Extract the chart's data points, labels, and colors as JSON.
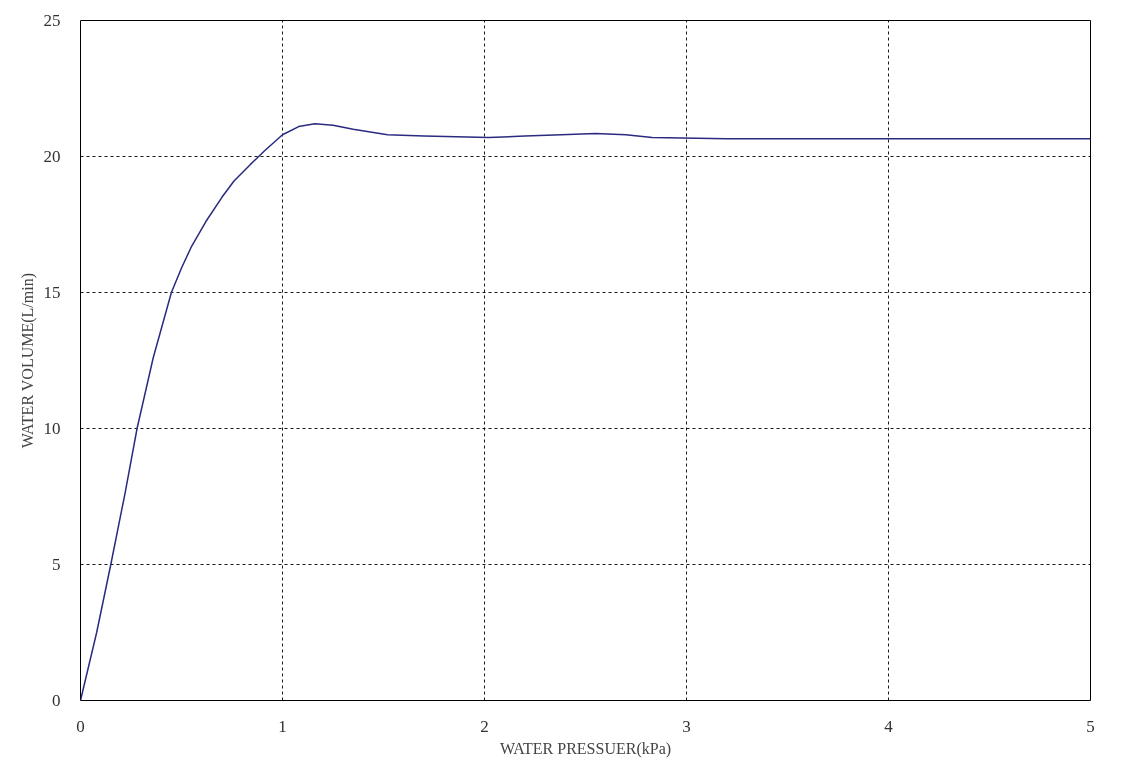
{
  "chart_data": {
    "type": "line",
    "xlabel": "WATER PRESSUER(kPa)",
    "ylabel": "WATER VOLUME(L/min)",
    "xlim": [
      0,
      5
    ],
    "ylim": [
      0,
      25
    ],
    "xticks": [
      0,
      1,
      2,
      3,
      4,
      5
    ],
    "yticks": [
      0,
      5,
      10,
      15,
      20,
      25
    ],
    "grid": true,
    "line_style": "solid",
    "marker": "none",
    "series": [
      {
        "color": "#2a2a80",
        "x": [
          0,
          0.08,
          0.15,
          0.22,
          0.28,
          0.36,
          0.45,
          0.5,
          0.55,
          0.62,
          0.7,
          0.76,
          0.84,
          0.91,
          1.0,
          1.08,
          1.16,
          1.25,
          1.35,
          1.52,
          1.7,
          2.02,
          2.2,
          2.38,
          2.55,
          2.7,
          2.83,
          3.2,
          4.0,
          5.0
        ],
        "values": [
          0,
          2.5,
          5,
          7.6,
          10,
          12.6,
          15,
          15.9,
          16.7,
          17.6,
          18.5,
          19.1,
          19.7,
          20.2,
          20.8,
          21.1,
          21.2,
          21.15,
          21.0,
          20.8,
          20.75,
          20.7,
          20.75,
          20.8,
          20.85,
          20.8,
          20.7,
          20.65,
          20.65,
          20.65
        ]
      }
    ]
  }
}
